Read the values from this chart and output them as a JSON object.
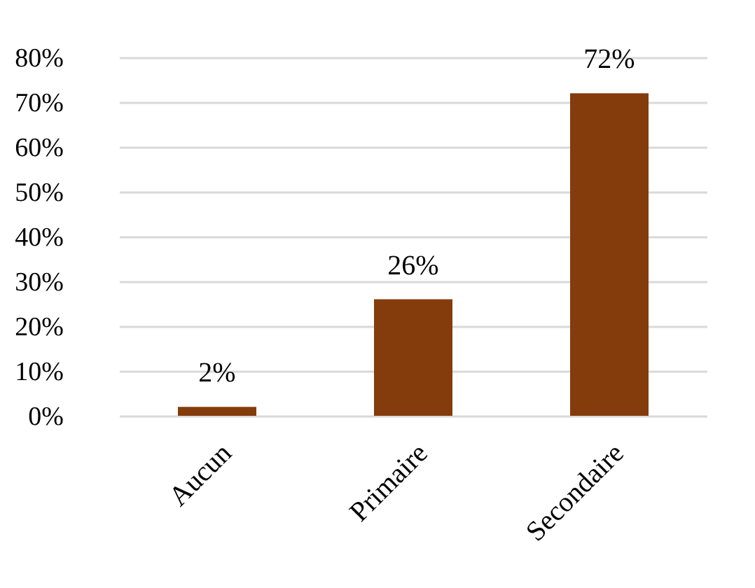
{
  "chart_data": {
    "type": "bar",
    "categories": [
      "Aucun",
      "Primaire",
      "Secondaire"
    ],
    "values": [
      2,
      26,
      72
    ],
    "color": "#843c0c",
    "value_labels": [
      "2%",
      "26%",
      "72%"
    ],
    "ylim": [
      0,
      80
    ],
    "yticks": [
      {
        "value": 0,
        "label": "0%"
      },
      {
        "value": 10,
        "label": "10%"
      },
      {
        "value": 20,
        "label": "20%"
      },
      {
        "value": 30,
        "label": "30%"
      },
      {
        "value": 40,
        "label": "40%"
      },
      {
        "value": 50,
        "label": "50%"
      },
      {
        "value": 60,
        "label": "60%"
      },
      {
        "value": 70,
        "label": "70%"
      },
      {
        "value": 80,
        "label": "80%"
      }
    ],
    "grid": "y"
  }
}
